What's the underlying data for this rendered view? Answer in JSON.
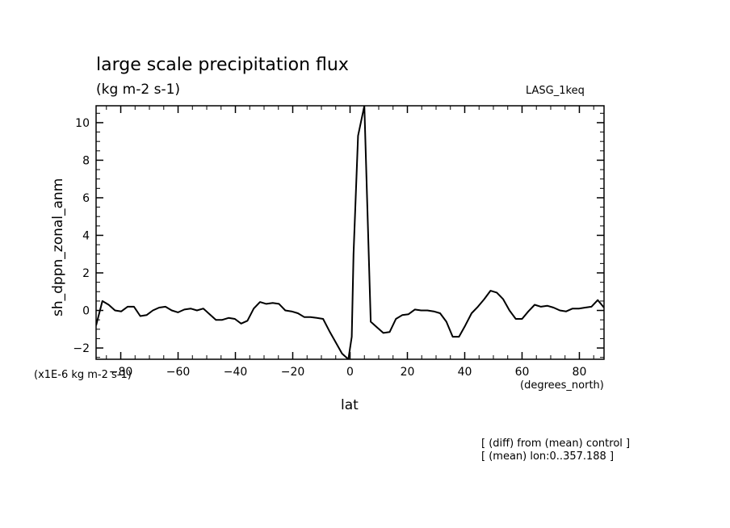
{
  "header": {
    "title": "large scale precipitation flux",
    "subtitle": "(kg m-2 s-1)",
    "dataset": "LASG_1keq"
  },
  "footer": {
    "note1": "[ (diff) from (mean) control ]",
    "note2": "[ (mean) lon:0..357.188 ]"
  },
  "chart_data": {
    "type": "line",
    "xlabel": "lat",
    "ylabel": "sh_dppn_zonal_anm",
    "x_units": "(degrees_north)",
    "y_units": "(x1E-6 kg m-2 s-1)",
    "xlim": [
      -88.6,
      88.6
    ],
    "ylim": [
      -2.6,
      10.9
    ],
    "x_ticks": [
      -80,
      -60,
      -40,
      -20,
      0,
      20,
      40,
      60,
      80
    ],
    "y_ticks": [
      -2,
      0,
      2,
      4,
      6,
      8,
      10
    ],
    "line_color": "#000000",
    "series": [
      {
        "x": [
          -88.6,
          -86.4,
          -84.2,
          -82.0,
          -79.8,
          -77.6,
          -75.4,
          -73.2,
          -71.0,
          -68.8,
          -66.6,
          -64.4,
          -62.2,
          -60.0,
          -57.8,
          -55.6,
          -53.4,
          -51.2,
          -49.0,
          -46.8,
          -44.6,
          -42.4,
          -40.2,
          -38.0,
          -35.8,
          -33.6,
          -31.4,
          -29.2,
          -27.0,
          -24.8,
          -22.6,
          -20.4,
          -18.2,
          -16.0,
          -13.8,
          -11.6,
          -9.4,
          -7.2,
          -5.0,
          -2.8,
          -0.6,
          0.6,
          1.2,
          2.8,
          5.0,
          7.2,
          9.4,
          11.6,
          13.8,
          16.0,
          18.2,
          20.4,
          22.6,
          24.8,
          27.0,
          29.2,
          31.4,
          33.6,
          35.8,
          38.0,
          40.2,
          42.4,
          44.6,
          46.8,
          49.0,
          51.2,
          53.4,
          55.6,
          57.8,
          60.0,
          62.2,
          64.4,
          66.6,
          68.8,
          71.0,
          73.2,
          75.4,
          77.6,
          79.8,
          82.0,
          84.2,
          86.4,
          88.6
        ],
        "y": [
          -0.8,
          0.5,
          0.3,
          0.0,
          -0.05,
          0.2,
          0.2,
          -0.3,
          -0.25,
          0.0,
          0.15,
          0.2,
          0.0,
          -0.1,
          0.05,
          0.1,
          0.0,
          0.1,
          -0.2,
          -0.5,
          -0.5,
          -0.4,
          -0.45,
          -0.7,
          -0.55,
          0.1,
          0.45,
          0.35,
          0.4,
          0.35,
          0.0,
          -0.05,
          -0.15,
          -0.35,
          -0.35,
          -0.4,
          -0.45,
          -1.1,
          -1.7,
          -2.3,
          -2.6,
          -1.4,
          3.0,
          9.3,
          10.9,
          -0.6,
          -0.9,
          -1.2,
          -1.15,
          -0.45,
          -0.25,
          -0.2,
          0.05,
          0.0,
          0.0,
          -0.05,
          -0.15,
          -0.6,
          -1.4,
          -1.4,
          -0.8,
          -0.15,
          0.2,
          0.6,
          1.05,
          0.95,
          0.6,
          0.0,
          -0.45,
          -0.45,
          -0.05,
          0.3,
          0.2,
          0.25,
          0.15,
          0.0,
          -0.05,
          0.1,
          0.1,
          0.15,
          0.2,
          0.55,
          0.15
        ]
      }
    ]
  }
}
